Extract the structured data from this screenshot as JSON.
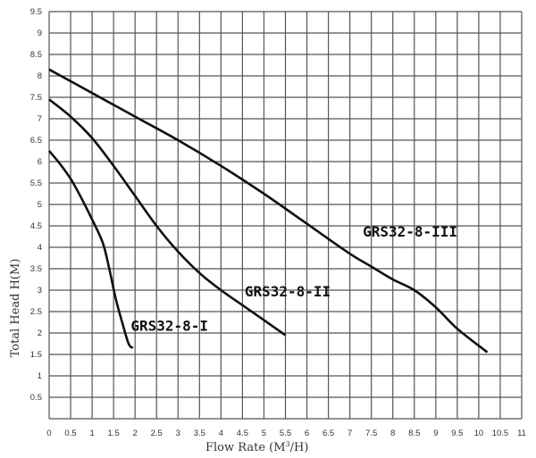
{
  "chart_data": {
    "type": "line",
    "title": "",
    "xlabel": "Flow Rate (M³/H)",
    "ylabel": "Total Head H(M)",
    "xlim": [
      0,
      11
    ],
    "ylim": [
      0,
      9.5
    ],
    "grid": true,
    "x_ticks": [
      "0",
      "0.5",
      "1",
      "1.5",
      "2",
      "2.5",
      "3",
      "3.5",
      "4",
      "4.5",
      "5",
      "5.5",
      "6",
      "6.5",
      "7",
      "7.5",
      "8",
      "8.5",
      "9",
      "9.5",
      "10",
      "10.5",
      "11"
    ],
    "y_ticks": [
      "0.5",
      "1",
      "1.5",
      "2",
      "2.5",
      "3",
      "3.5",
      "4",
      "4.5",
      "5",
      "5.5",
      "6",
      "6.5",
      "7",
      "7.5",
      "8",
      "8.5",
      "9",
      "9.5"
    ],
    "series": [
      {
        "name": "GRS32-8-I",
        "label_pos": [
          1.9,
          2.05
        ],
        "points": [
          [
            0,
            6.25
          ],
          [
            0.25,
            5.95
          ],
          [
            0.5,
            5.6
          ],
          [
            0.75,
            5.15
          ],
          [
            1.0,
            4.65
          ],
          [
            1.25,
            4.1
          ],
          [
            1.4,
            3.5
          ],
          [
            1.55,
            2.8
          ],
          [
            1.7,
            2.25
          ],
          [
            1.85,
            1.75
          ],
          [
            1.95,
            1.65
          ]
        ]
      },
      {
        "name": "GRS32-8-II",
        "label_pos": [
          4.55,
          2.85
        ],
        "points": [
          [
            0,
            7.45
          ],
          [
            0.5,
            7.05
          ],
          [
            1.0,
            6.55
          ],
          [
            1.5,
            5.9
          ],
          [
            2.0,
            5.2
          ],
          [
            2.5,
            4.5
          ],
          [
            3.0,
            3.9
          ],
          [
            3.5,
            3.4
          ],
          [
            4.0,
            3.0
          ],
          [
            4.5,
            2.65
          ],
          [
            5.0,
            2.3
          ],
          [
            5.5,
            1.95
          ]
        ]
      },
      {
        "name": "GRS32-8-III",
        "label_pos": [
          7.3,
          4.25
        ],
        "points": [
          [
            0,
            8.15
          ],
          [
            1,
            7.6
          ],
          [
            2,
            7.05
          ],
          [
            3,
            6.5
          ],
          [
            4,
            5.9
          ],
          [
            5,
            5.25
          ],
          [
            6,
            4.55
          ],
          [
            7,
            3.85
          ],
          [
            7.5,
            3.55
          ],
          [
            8,
            3.25
          ],
          [
            8.5,
            3.0
          ],
          [
            9,
            2.6
          ],
          [
            9.5,
            2.1
          ],
          [
            10.2,
            1.55
          ]
        ]
      }
    ]
  },
  "axes": {
    "x_title": "Flow Rate (M",
    "x_title_sup": "3",
    "x_title_end": "/H)",
    "y_title": "Total Head H(M)"
  }
}
